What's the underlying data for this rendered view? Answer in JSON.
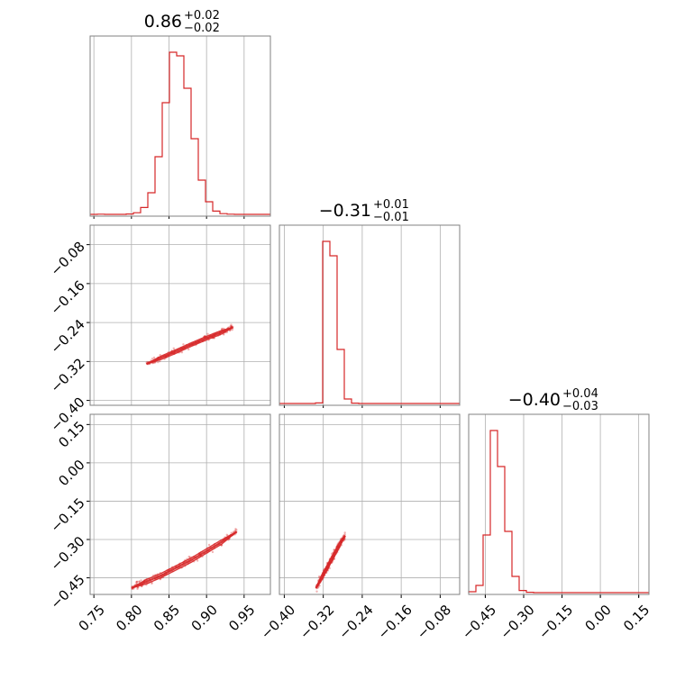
{
  "chart_data": {
    "type": "corner",
    "hist_color": "#d62728",
    "titles": [
      {
        "value": "0.86",
        "plus": "+0.02",
        "minus": "−0.02"
      },
      {
        "value": "−0.31",
        "plus": "+0.01",
        "minus": "−0.01"
      },
      {
        "value": "−0.40",
        "plus": "+0.04",
        "minus": "−0.03"
      }
    ],
    "grid": true,
    "params": [
      {
        "range": [
          0.745,
          0.985
        ],
        "ticks": [
          0.75,
          0.8,
          0.85,
          0.9,
          0.95
        ],
        "tick_labels": [
          "0.75",
          "0.80",
          "0.85",
          "0.90",
          "0.95"
        ]
      },
      {
        "range": [
          -0.41,
          -0.04
        ],
        "ticks": [
          -0.4,
          -0.32,
          -0.24,
          -0.16,
          -0.08
        ],
        "tick_labels": [
          "−0.40",
          "−0.32",
          "−0.24",
          "−0.16",
          "−0.08"
        ]
      },
      {
        "range": [
          -0.515,
          0.19
        ],
        "ticks": [
          -0.45,
          -0.3,
          -0.15,
          0.0,
          0.15
        ],
        "tick_labels": [
          "−0.45",
          "−0.30",
          "−0.15",
          "0.00",
          "0.15"
        ]
      }
    ],
    "histograms": [
      {
        "param": 0,
        "bin_edges": [
          0.745,
          0.7546,
          0.7642,
          0.7738,
          0.7834,
          0.793,
          0.8026,
          0.8122,
          0.8218,
          0.8314,
          0.841,
          0.8506,
          0.8602,
          0.8698,
          0.8794,
          0.889,
          0.8986,
          0.9082,
          0.9178,
          0.9274,
          0.937,
          0.9466,
          0.9562,
          0.9658,
          0.9754,
          0.985
        ],
        "counts": [
          0,
          1,
          0,
          0,
          0,
          2,
          9,
          38,
          120,
          320,
          620,
          900,
          880,
          700,
          420,
          190,
          70,
          18,
          4,
          1,
          0,
          0,
          0,
          0,
          0
        ]
      },
      {
        "param": 1,
        "bin_edges": [
          -0.41,
          -0.3952,
          -0.3804,
          -0.3656,
          -0.3508,
          -0.336,
          -0.3212,
          -0.3064,
          -0.2916,
          -0.2768,
          -0.262,
          -0.2472,
          -0.2324,
          -0.2176,
          -0.2028,
          -0.188,
          -0.1732,
          -0.1584,
          -0.1436,
          -0.1288,
          -0.114,
          -0.0992,
          -0.0844,
          -0.0696,
          -0.0548,
          -0.04
        ],
        "counts": [
          0,
          0,
          0,
          0,
          0,
          3,
          900,
          820,
          300,
          25,
          2,
          0,
          0,
          0,
          0,
          0,
          0,
          0,
          0,
          0,
          0,
          0,
          0,
          0,
          0
        ]
      },
      {
        "param": 2,
        "bin_edges": [
          -0.515,
          -0.4868,
          -0.4586,
          -0.4304,
          -0.4022,
          -0.374,
          -0.3458,
          -0.3176,
          -0.2894,
          -0.2612,
          -0.233,
          -0.2048,
          -0.1766,
          -0.1484,
          -0.1202,
          -0.092,
          -0.0638,
          -0.0356,
          -0.0074,
          0.0208,
          0.049,
          0.0772,
          0.1054,
          0.1336,
          0.1618,
          0.19
        ],
        "counts": [
          5,
          40,
          320,
          900,
          700,
          340,
          90,
          12,
          2,
          0,
          0,
          0,
          0,
          0,
          0,
          0,
          0,
          0,
          0,
          0,
          0,
          0,
          0,
          0,
          0
        ]
      }
    ],
    "pairs": [
      {
        "x_param": 0,
        "y_param": 1,
        "trend": [
          [
            0.82,
            -0.325
          ],
          [
            0.84,
            -0.312
          ],
          [
            0.86,
            -0.299
          ],
          [
            0.88,
            -0.285
          ],
          [
            0.9,
            -0.272
          ],
          [
            0.92,
            -0.26
          ],
          [
            0.935,
            -0.25
          ]
        ],
        "spread": 0.006
      },
      {
        "x_param": 0,
        "y_param": 2,
        "trend": [
          [
            0.8,
            -0.49
          ],
          [
            0.82,
            -0.465
          ],
          [
            0.84,
            -0.44
          ],
          [
            0.86,
            -0.41
          ],
          [
            0.88,
            -0.38
          ],
          [
            0.9,
            -0.345
          ],
          [
            0.92,
            -0.31
          ],
          [
            0.94,
            -0.27
          ]
        ],
        "spread": 0.014
      },
      {
        "x_param": 1,
        "y_param": 2,
        "trend": [
          [
            -0.335,
            -0.49
          ],
          [
            -0.325,
            -0.455
          ],
          [
            -0.315,
            -0.42
          ],
          [
            -0.305,
            -0.385
          ],
          [
            -0.295,
            -0.35
          ],
          [
            -0.285,
            -0.315
          ],
          [
            -0.275,
            -0.285
          ]
        ],
        "spread": 0.016
      }
    ]
  }
}
